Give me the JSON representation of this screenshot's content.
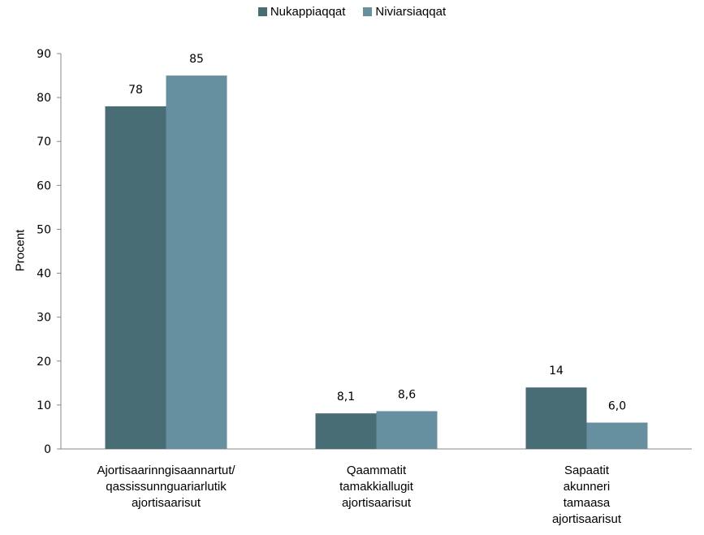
{
  "chart_data": {
    "type": "bar",
    "title": "",
    "xlabel": "",
    "ylabel": "Procent",
    "ylim": [
      0,
      90
    ],
    "yticks": [
      "0",
      "10",
      "20",
      "30",
      "40",
      "50",
      "60",
      "70",
      "80",
      "90"
    ],
    "grid": false,
    "legend_position": "top-center",
    "categories": [
      [
        "Ajortisaarinngisaannartut/",
        "qassissunnguariarlutik",
        "ajortisaarisut"
      ],
      [
        "Qaammatit",
        "tamakkiallugit",
        "ajortisaarisut"
      ],
      [
        "Sapaatit",
        "akunneri",
        "tamaasa",
        "ajortisaarisut"
      ]
    ],
    "series": [
      {
        "name": "Nukappiaqqat",
        "color": "#496d75",
        "values": [
          78,
          8.1,
          14
        ],
        "labels": [
          "78",
          "8,1",
          "14"
        ]
      },
      {
        "name": "Niviarsiaqqat",
        "color": "#6690a0",
        "values": [
          85,
          8.6,
          6.0
        ],
        "labels": [
          "85",
          "8,6",
          "6,0"
        ]
      }
    ]
  }
}
